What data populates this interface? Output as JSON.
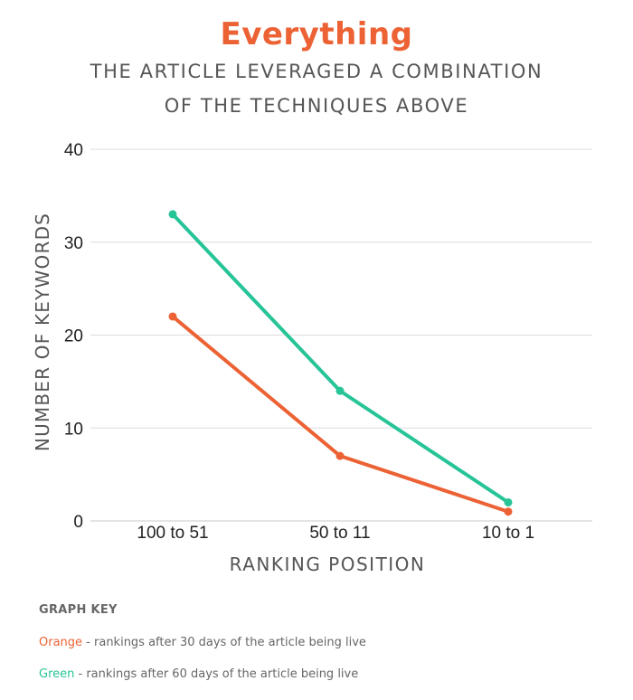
{
  "chart_data": {
    "type": "line",
    "title": "Everything",
    "subtitle_line1": "THE ARTICLE LEVERAGED A COMBINATION",
    "subtitle_line2": "OF THE TECHNIQUES ABOVE",
    "xlabel": "RANKING POSITION",
    "ylabel": "NUMBER OF KEYWORDS",
    "categories": [
      "100 to 51",
      "50 to 11",
      "10 to 1"
    ],
    "ylim": [
      0,
      40
    ],
    "yticks": [
      0,
      10,
      20,
      30,
      40
    ],
    "grid": true,
    "series": [
      {
        "key": "orange",
        "color": "#ec6234",
        "values": [
          22,
          7,
          1
        ]
      },
      {
        "key": "green",
        "color": "#27c497",
        "values": [
          33,
          14,
          2
        ]
      }
    ]
  },
  "graph_key": {
    "heading": "GRAPH KEY",
    "orange_word": "Orange",
    "orange_text": " - rankings after 30 days of the article being live",
    "green_word": "Green",
    "green_text": " - rankings after 60 days of the article being live"
  }
}
